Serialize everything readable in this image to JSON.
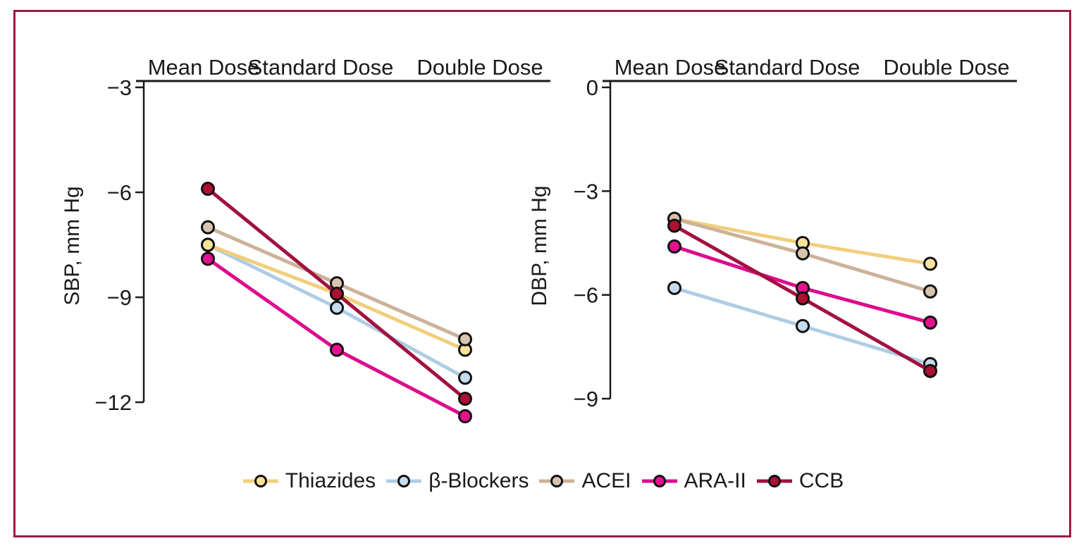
{
  "figure": {
    "frame_color": "#9A1C3E",
    "background": "#FFFFFF",
    "axis_color": "#1A1A1A",
    "marker_outline": "#111111"
  },
  "legend": {
    "items": [
      {
        "label": "Thiazides"
      },
      {
        "label": "β-Blockers"
      },
      {
        "label": "ACEI"
      },
      {
        "label": "ARA-II"
      },
      {
        "label": "CCB"
      }
    ]
  },
  "series_styles": [
    {
      "name": "Thiazides",
      "line_color": "#F2CE7C",
      "marker_color": "#FBE29B"
    },
    {
      "name": "β-Blockers",
      "line_color": "#AECDE4",
      "marker_color": "#C5DCEE"
    },
    {
      "name": "ACEI",
      "line_color": "#CBB299",
      "marker_color": "#D8C4AD"
    },
    {
      "name": "ARA-II",
      "line_color": "#DC0C8D",
      "marker_color": "#E90F91"
    },
    {
      "name": "CCB",
      "line_color": "#A21140",
      "marker_color": "#AD1031"
    }
  ],
  "chart_data": [
    {
      "type": "line",
      "title": "",
      "xlabel": "",
      "ylabel": "SBP, mm Hg",
      "categories": [
        "Mean Dose",
        "Standard Dose",
        "Double Dose"
      ],
      "yticks": [
        -3,
        -6,
        -9,
        -12
      ],
      "ylim": [
        -3,
        -12.6
      ],
      "grid": false,
      "legend_position": "bottom-shared",
      "series": [
        {
          "name": "Thiazides",
          "values": [
            -7.5,
            -8.9,
            -10.5
          ]
        },
        {
          "name": "β-Blockers",
          "values": [
            -7.5,
            -9.3,
            -11.3
          ]
        },
        {
          "name": "ACEI",
          "values": [
            -7.0,
            -8.6,
            -10.2
          ]
        },
        {
          "name": "ARA-II",
          "values": [
            -7.9,
            -10.5,
            -12.4
          ]
        },
        {
          "name": "CCB",
          "values": [
            -5.9,
            -8.9,
            -11.9
          ]
        }
      ]
    },
    {
      "type": "line",
      "title": "",
      "xlabel": "",
      "ylabel": "DBP, mm Hg",
      "categories": [
        "Mean Dose",
        "Standard Dose",
        "Double Dose"
      ],
      "yticks": [
        0,
        -3,
        -6,
        -9
      ],
      "ylim": [
        0,
        -9
      ],
      "grid": false,
      "legend_position": "bottom-shared",
      "series": [
        {
          "name": "Thiazides",
          "values": [
            -3.8,
            -4.5,
            -5.1
          ]
        },
        {
          "name": "β-Blockers",
          "values": [
            -5.8,
            -6.9,
            -8.0
          ]
        },
        {
          "name": "ACEI",
          "values": [
            -3.8,
            -4.8,
            -5.9
          ]
        },
        {
          "name": "ARA-II",
          "values": [
            -4.6,
            -5.8,
            -6.8
          ]
        },
        {
          "name": "CCB",
          "values": [
            -4.0,
            -6.1,
            -8.2
          ]
        }
      ]
    }
  ]
}
